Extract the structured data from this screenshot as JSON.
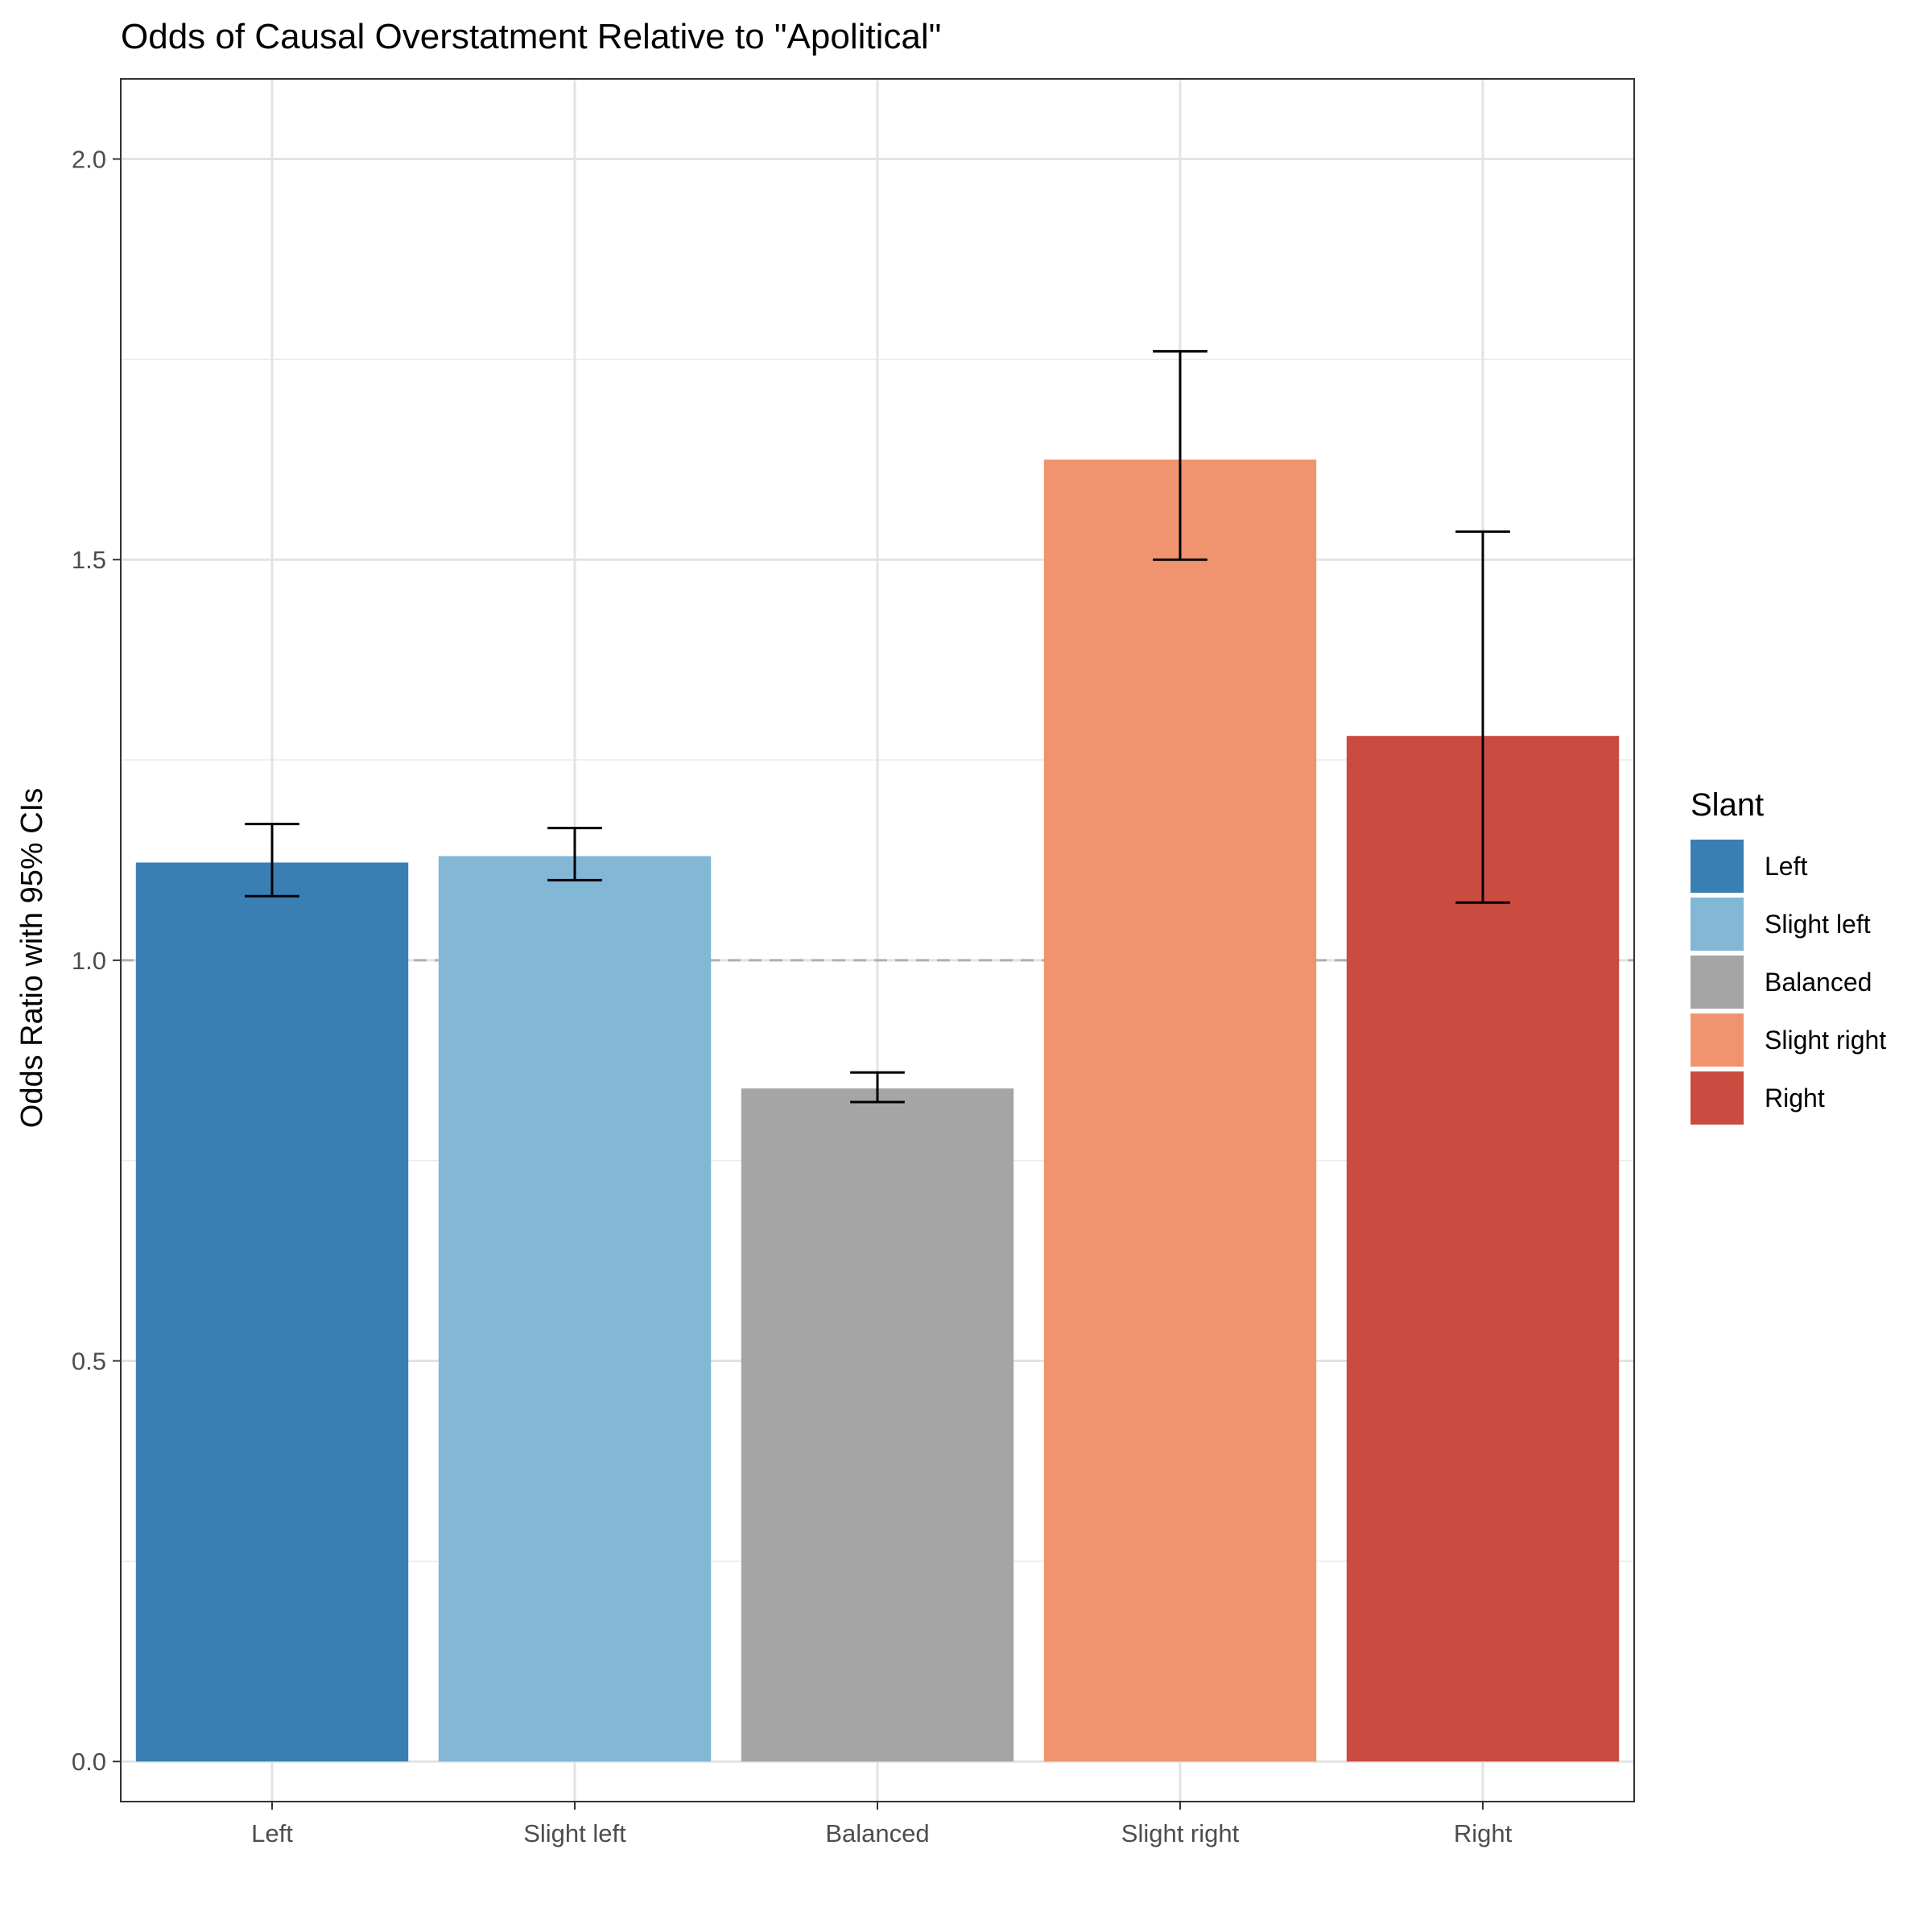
{
  "chart_data": {
    "type": "bar",
    "title": "Odds of Causal Overstatment Relative to \"Apolitical\"",
    "xlabel": "",
    "ylabel": "Odds Ratio with 95% CIs",
    "categories": [
      "Left",
      "Slight left",
      "Balanced",
      "Slight right",
      "Right"
    ],
    "series": [
      {
        "values": [
          1.122,
          1.13,
          0.84,
          1.625,
          1.28
        ],
        "ci_lower": [
          1.08,
          1.1,
          0.823,
          1.5,
          1.072
        ],
        "ci_upper": [
          1.17,
          1.165,
          0.86,
          1.76,
          1.535
        ]
      }
    ],
    "ylim": [
      -0.05,
      2.1
    ],
    "yticks": [
      0.0,
      0.5,
      1.0,
      1.5,
      2.0
    ],
    "ytick_labels": [
      "0.0",
      "0.5",
      "1.0",
      "1.5",
      "2.0"
    ],
    "reference_line": 1.0,
    "grid": true,
    "legend": {
      "title": "Slant",
      "placement": "right",
      "entries": [
        "Left",
        "Slight left",
        "Balanced",
        "Slight right",
        "Right"
      ]
    },
    "colors": [
      "#3a7fb4",
      "#83b7d6",
      "#a5a5a5",
      "#f09470",
      "#ca4b3f"
    ]
  }
}
